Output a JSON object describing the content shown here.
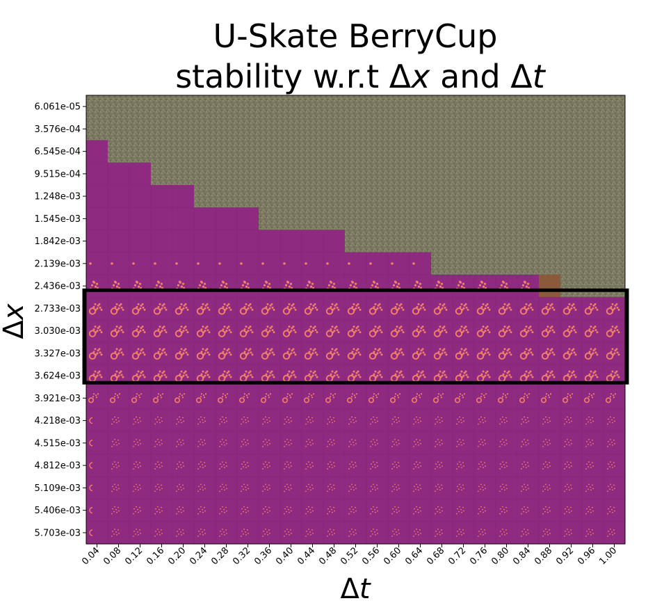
{
  "chart_data": {
    "type": "heatmap",
    "title": [
      "U-Skate BerryCup",
      "stability w.r.t Δx and Δt"
    ],
    "xlabel": "Δt",
    "ylabel": "Δx",
    "x": [
      "0.04",
      "0.08",
      "0.12",
      "0.16",
      "0.20",
      "0.24",
      "0.28",
      "0.32",
      "0.36",
      "0.40",
      "0.44",
      "0.48",
      "0.52",
      "0.56",
      "0.60",
      "0.64",
      "0.68",
      "0.72",
      "0.76",
      "0.80",
      "0.84",
      "0.88",
      "0.92",
      "0.96",
      "1.00"
    ],
    "y": [
      "6.061e-05",
      "3.576e-04",
      "6.545e-04",
      "9.515e-04",
      "1.248e-03",
      "1.545e-03",
      "1.842e-03",
      "2.139e-03",
      "2.436e-03",
      "2.733e-03",
      "3.030e-03",
      "3.327e-03",
      "3.624e-03",
      "3.921e-03",
      "4.218e-03",
      "4.515e-03",
      "4.812e-03",
      "5.109e-03",
      "5.406e-03",
      "5.703e-03"
    ],
    "stability_boundary_row": [
      2,
      3,
      3,
      4,
      4,
      5,
      5,
      5,
      6,
      6,
      6,
      6,
      7,
      7,
      7,
      7,
      8,
      8,
      8,
      8,
      8,
      8,
      9,
      9,
      9
    ],
    "highlight_rows": [
      "2.733e-03",
      "3.030e-03",
      "3.327e-03",
      "3.624e-03"
    ],
    "colors": {
      "stable": "#8e2a80",
      "unstable": "#7d7a62",
      "pattern": "#f0806a",
      "transition": "#8a5a3a",
      "highlight": "#000000"
    },
    "grid": false
  }
}
